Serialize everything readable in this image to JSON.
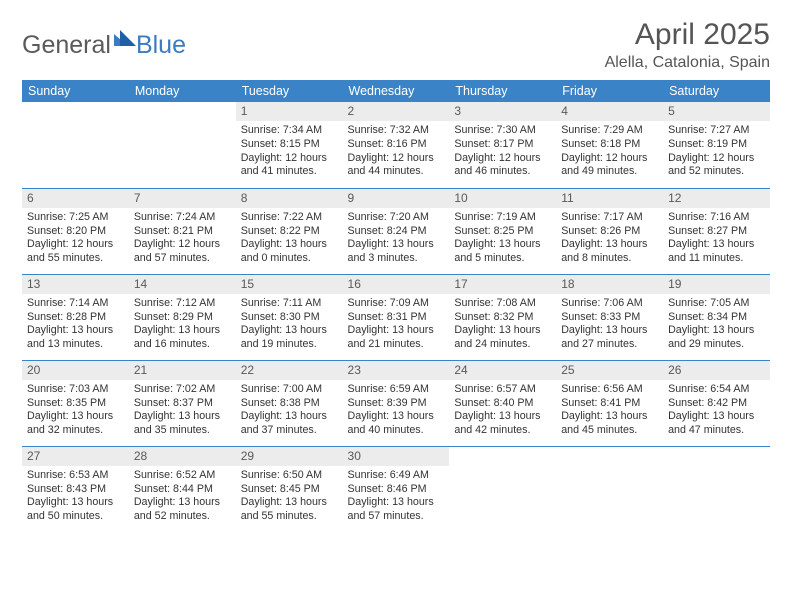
{
  "logo": {
    "part1": "General",
    "part2": "Blue"
  },
  "title": "April 2025",
  "location": "Alella, Catalonia, Spain",
  "header_bg": "#3b83c7",
  "daynum_bg": "#ececec",
  "rule_color": "#3b83c7",
  "text_color": "#333333",
  "days": [
    "Sunday",
    "Monday",
    "Tuesday",
    "Wednesday",
    "Thursday",
    "Friday",
    "Saturday"
  ],
  "weeks": [
    [
      null,
      null,
      {
        "n": "1",
        "sr": "7:34 AM",
        "ss": "8:15 PM",
        "dh": "12",
        "dm": "41"
      },
      {
        "n": "2",
        "sr": "7:32 AM",
        "ss": "8:16 PM",
        "dh": "12",
        "dm": "44"
      },
      {
        "n": "3",
        "sr": "7:30 AM",
        "ss": "8:17 PM",
        "dh": "12",
        "dm": "46"
      },
      {
        "n": "4",
        "sr": "7:29 AM",
        "ss": "8:18 PM",
        "dh": "12",
        "dm": "49"
      },
      {
        "n": "5",
        "sr": "7:27 AM",
        "ss": "8:19 PM",
        "dh": "12",
        "dm": "52"
      }
    ],
    [
      {
        "n": "6",
        "sr": "7:25 AM",
        "ss": "8:20 PM",
        "dh": "12",
        "dm": "55"
      },
      {
        "n": "7",
        "sr": "7:24 AM",
        "ss": "8:21 PM",
        "dh": "12",
        "dm": "57"
      },
      {
        "n": "8",
        "sr": "7:22 AM",
        "ss": "8:22 PM",
        "dh": "13",
        "dm": "0"
      },
      {
        "n": "9",
        "sr": "7:20 AM",
        "ss": "8:24 PM",
        "dh": "13",
        "dm": "3"
      },
      {
        "n": "10",
        "sr": "7:19 AM",
        "ss": "8:25 PM",
        "dh": "13",
        "dm": "5"
      },
      {
        "n": "11",
        "sr": "7:17 AM",
        "ss": "8:26 PM",
        "dh": "13",
        "dm": "8"
      },
      {
        "n": "12",
        "sr": "7:16 AM",
        "ss": "8:27 PM",
        "dh": "13",
        "dm": "11"
      }
    ],
    [
      {
        "n": "13",
        "sr": "7:14 AM",
        "ss": "8:28 PM",
        "dh": "13",
        "dm": "13"
      },
      {
        "n": "14",
        "sr": "7:12 AM",
        "ss": "8:29 PM",
        "dh": "13",
        "dm": "16"
      },
      {
        "n": "15",
        "sr": "7:11 AM",
        "ss": "8:30 PM",
        "dh": "13",
        "dm": "19"
      },
      {
        "n": "16",
        "sr": "7:09 AM",
        "ss": "8:31 PM",
        "dh": "13",
        "dm": "21"
      },
      {
        "n": "17",
        "sr": "7:08 AM",
        "ss": "8:32 PM",
        "dh": "13",
        "dm": "24"
      },
      {
        "n": "18",
        "sr": "7:06 AM",
        "ss": "8:33 PM",
        "dh": "13",
        "dm": "27"
      },
      {
        "n": "19",
        "sr": "7:05 AM",
        "ss": "8:34 PM",
        "dh": "13",
        "dm": "29"
      }
    ],
    [
      {
        "n": "20",
        "sr": "7:03 AM",
        "ss": "8:35 PM",
        "dh": "13",
        "dm": "32"
      },
      {
        "n": "21",
        "sr": "7:02 AM",
        "ss": "8:37 PM",
        "dh": "13",
        "dm": "35"
      },
      {
        "n": "22",
        "sr": "7:00 AM",
        "ss": "8:38 PM",
        "dh": "13",
        "dm": "37"
      },
      {
        "n": "23",
        "sr": "6:59 AM",
        "ss": "8:39 PM",
        "dh": "13",
        "dm": "40"
      },
      {
        "n": "24",
        "sr": "6:57 AM",
        "ss": "8:40 PM",
        "dh": "13",
        "dm": "42"
      },
      {
        "n": "25",
        "sr": "6:56 AM",
        "ss": "8:41 PM",
        "dh": "13",
        "dm": "45"
      },
      {
        "n": "26",
        "sr": "6:54 AM",
        "ss": "8:42 PM",
        "dh": "13",
        "dm": "47"
      }
    ],
    [
      {
        "n": "27",
        "sr": "6:53 AM",
        "ss": "8:43 PM",
        "dh": "13",
        "dm": "50"
      },
      {
        "n": "28",
        "sr": "6:52 AM",
        "ss": "8:44 PM",
        "dh": "13",
        "dm": "52"
      },
      {
        "n": "29",
        "sr": "6:50 AM",
        "ss": "8:45 PM",
        "dh": "13",
        "dm": "55"
      },
      {
        "n": "30",
        "sr": "6:49 AM",
        "ss": "8:46 PM",
        "dh": "13",
        "dm": "57"
      },
      null,
      null,
      null
    ]
  ],
  "labels": {
    "sunrise": "Sunrise:",
    "sunset": "Sunset:",
    "daylight": "Daylight:",
    "hours": "hours",
    "and": "and",
    "minutes": "minutes."
  }
}
